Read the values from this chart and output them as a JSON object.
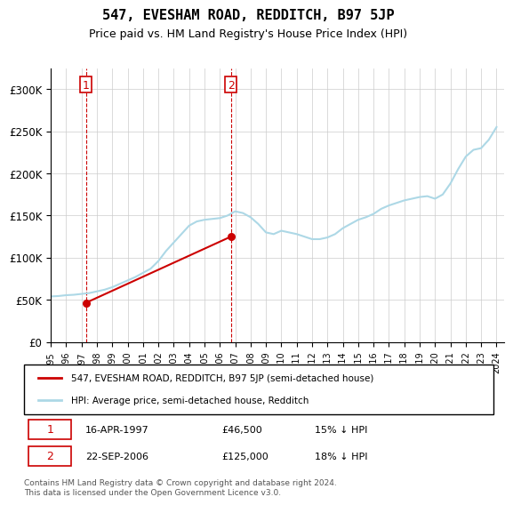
{
  "title": "547, EVESHAM ROAD, REDDITCH, B97 5JP",
  "subtitle": "Price paid vs. HM Land Registry's House Price Index (HPI)",
  "hpi_color": "#add8e6",
  "price_color": "#cc0000",
  "marker_color": "#cc0000",
  "dashed_color": "#cc0000",
  "background_color": "#ffffff",
  "grid_color": "#cccccc",
  "ylim": [
    0,
    325000
  ],
  "yticks": [
    0,
    50000,
    100000,
    150000,
    200000,
    250000,
    300000
  ],
  "ytick_labels": [
    "£0",
    "£50K",
    "£100K",
    "£150K",
    "£200K",
    "£250K",
    "£300K"
  ],
  "sale1_date": "16-APR-1997",
  "sale1_price": 46500,
  "sale1_label": "1",
  "sale1_x": 1997.29,
  "sale2_date": "22-SEP-2006",
  "sale2_price": 125000,
  "sale2_label": "2",
  "sale2_x": 2006.72,
  "legend_line1": "547, EVESHAM ROAD, REDDITCH, B97 5JP (semi-detached house)",
  "legend_line2": "HPI: Average price, semi-detached house, Redditch",
  "table_row1": "1    16-APR-1997         £46,500        15% ↓ HPI",
  "table_row2": "2    22-SEP-2006         £125,000      18% ↓ HPI",
  "footnote": "Contains HM Land Registry data © Crown copyright and database right 2024.\nThis data is licensed under the Open Government Licence v3.0.",
  "hpi_data": {
    "years": [
      1995,
      1995.5,
      1996,
      1996.5,
      1997,
      1997.5,
      1998,
      1998.5,
      1999,
      1999.5,
      2000,
      2000.5,
      2001,
      2001.5,
      2002,
      2002.5,
      2003,
      2003.5,
      2004,
      2004.5,
      2005,
      2005.5,
      2006,
      2006.5,
      2007,
      2007.5,
      2008,
      2008.5,
      2009,
      2009.5,
      2010,
      2010.5,
      2011,
      2011.5,
      2012,
      2012.5,
      2013,
      2013.5,
      2014,
      2014.5,
      2015,
      2015.5,
      2016,
      2016.5,
      2017,
      2017.5,
      2018,
      2018.5,
      2019,
      2019.5,
      2020,
      2020.5,
      2021,
      2021.5,
      2022,
      2022.5,
      2023,
      2023.5,
      2024
    ],
    "values": [
      54000,
      54500,
      55500,
      56000,
      57000,
      58000,
      60000,
      62000,
      65000,
      69000,
      73000,
      77000,
      82000,
      87000,
      96000,
      108000,
      118000,
      128000,
      138000,
      143000,
      145000,
      146000,
      147000,
      150000,
      155000,
      153000,
      148000,
      140000,
      130000,
      128000,
      132000,
      130000,
      128000,
      125000,
      122000,
      122000,
      124000,
      128000,
      135000,
      140000,
      145000,
      148000,
      152000,
      158000,
      162000,
      165000,
      168000,
      170000,
      172000,
      173000,
      170000,
      175000,
      188000,
      205000,
      220000,
      228000,
      230000,
      240000,
      255000
    ]
  },
  "price_data": {
    "years": [
      1997.29,
      2006.72
    ],
    "values": [
      46500,
      125000
    ]
  }
}
